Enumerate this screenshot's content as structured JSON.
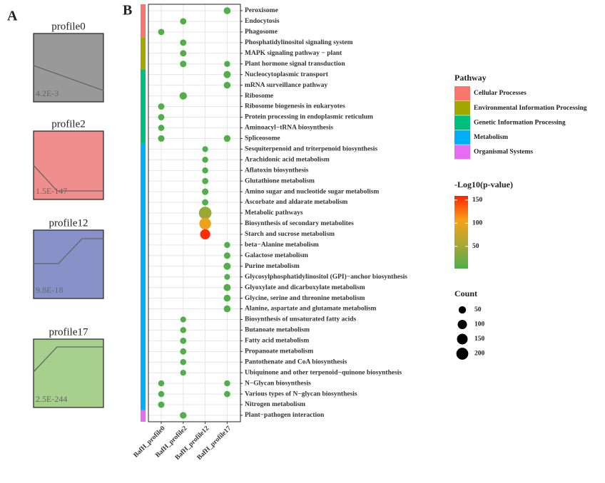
{
  "chart_data": {
    "type": "dotplot",
    "panels": [
      "A",
      "B"
    ],
    "profiles": [
      {
        "title": "profile0",
        "pvalue": "4.2E-3",
        "color": "#999999"
      },
      {
        "title": "profile2",
        "pvalue": "1.5E-147",
        "color": "#f08e8e"
      },
      {
        "title": "profile12",
        "pvalue": "9.8E-18",
        "color": "#8892c8"
      },
      {
        "title": "profile17",
        "pvalue": "2.5E-244",
        "color": "#a6d08c"
      }
    ],
    "columns": [
      "BafH_profile0",
      "BafH_profile2",
      "BafH_profile12",
      "BafH_profile17"
    ],
    "groups": [
      {
        "name": "Cellular Processes",
        "color": "#f8766d",
        "pathways": [
          {
            "name": "Peroxisome",
            "count": [
              null,
              null,
              null,
              40
            ],
            "logp": [
              null,
              null,
              null,
              5
            ]
          },
          {
            "name": "Endocytosis",
            "count": [
              null,
              30,
              null,
              null
            ],
            "logp": [
              null,
              4,
              null,
              null
            ]
          },
          {
            "name": "Phagosome",
            "count": [
              28,
              null,
              null,
              null
            ],
            "logp": [
              4,
              null,
              null,
              null
            ]
          }
        ]
      },
      {
        "name": "Environmental Information Processing",
        "color": "#a3a500",
        "pathways": [
          {
            "name": "Phosphatidylinositol signaling system",
            "count": [
              null,
              30,
              null,
              null
            ],
            "logp": [
              null,
              4,
              null,
              null
            ]
          },
          {
            "name": "MAPK signaling pathway − plant",
            "count": [
              null,
              30,
              null,
              null
            ],
            "logp": [
              null,
              4,
              null,
              null
            ]
          },
          {
            "name": "Plant hormone signal transduction",
            "count": [
              null,
              32,
              null,
              25
            ],
            "logp": [
              null,
              4,
              null,
              3
            ]
          }
        ]
      },
      {
        "name": "Genetic Information Processing",
        "color": "#00bf7d",
        "pathways": [
          {
            "name": "Nucleocytoplasmic transport",
            "count": [
              null,
              null,
              null,
              45
            ],
            "logp": [
              null,
              null,
              null,
              6
            ]
          },
          {
            "name": "mRNA surveillance pathway",
            "count": [
              null,
              null,
              null,
              38
            ],
            "logp": [
              null,
              null,
              null,
              5
            ]
          },
          {
            "name": "Ribosome",
            "count": [
              null,
              50,
              null,
              null
            ],
            "logp": [
              null,
              6,
              null,
              null
            ]
          },
          {
            "name": "Ribosome biogenesis in eukaryotes",
            "count": [
              30,
              null,
              null,
              null
            ],
            "logp": [
              4,
              null,
              null,
              null
            ]
          },
          {
            "name": "Protein processing in endoplasmic reticulum",
            "count": [
              30,
              null,
              null,
              null
            ],
            "logp": [
              4,
              null,
              null,
              null
            ]
          },
          {
            "name": "Aminoacyl−tRNA biosynthesis",
            "count": [
              28,
              null,
              null,
              null
            ],
            "logp": [
              4,
              null,
              null,
              null
            ]
          },
          {
            "name": "Spliceosome",
            "count": [
              32,
              null,
              null,
              38
            ],
            "logp": [
              4,
              null,
              null,
              5
            ]
          }
        ]
      },
      {
        "name": "Metabolism",
        "color": "#00b0f6",
        "pathways": [
          {
            "name": "Sesquiterpenoid and triterpenoid biosynthesis",
            "count": [
              null,
              null,
              22,
              null
            ],
            "logp": [
              null,
              null,
              3,
              null
            ]
          },
          {
            "name": "Arachidonic acid metabolism",
            "count": [
              null,
              null,
              25,
              null
            ],
            "logp": [
              null,
              null,
              4,
              null
            ]
          },
          {
            "name": "Aflatoxin biosynthesis",
            "count": [
              null,
              null,
              25,
              null
            ],
            "logp": [
              null,
              null,
              4,
              null
            ]
          },
          {
            "name": "Glutathione metabolism",
            "count": [
              null,
              null,
              28,
              null
            ],
            "logp": [
              null,
              null,
              5,
              null
            ]
          },
          {
            "name": "Amino sugar and nucleotide sugar metabolism",
            "count": [
              null,
              null,
              32,
              null
            ],
            "logp": [
              null,
              null,
              5,
              null
            ]
          },
          {
            "name": "Ascorbate and aldarate metabolism",
            "count": [
              null,
              null,
              30,
              null
            ],
            "logp": [
              null,
              null,
              5,
              null
            ]
          },
          {
            "name": "Metabolic pathways",
            "count": [
              null,
              null,
              230,
              null
            ],
            "logp": [
              null,
              null,
              45,
              null
            ]
          },
          {
            "name": "Biosynthesis of secondary metabolites",
            "count": [
              null,
              null,
              190,
              null
            ],
            "logp": [
              null,
              null,
              100,
              null
            ]
          },
          {
            "name": "Starch and sucrose metabolism",
            "count": [
              null,
              null,
              130,
              null
            ],
            "logp": [
              null,
              null,
              155,
              null
            ]
          },
          {
            "name": "beta−Alanine metabolism",
            "count": [
              null,
              null,
              null,
              25
            ],
            "logp": [
              null,
              null,
              null,
              4
            ]
          },
          {
            "name": "Galactose metabolism",
            "count": [
              null,
              null,
              null,
              32
            ],
            "logp": [
              null,
              null,
              null,
              5
            ]
          },
          {
            "name": "Purine metabolism",
            "count": [
              null,
              null,
              null,
              45
            ],
            "logp": [
              null,
              null,
              null,
              5
            ]
          },
          {
            "name": "Glycosylphosphatidylinositol (GPI)−anchor biosynthesis",
            "count": [
              null,
              null,
              null,
              22
            ],
            "logp": [
              null,
              null,
              null,
              4
            ]
          },
          {
            "name": "Glyoxylate and dicarboxylate metabolism",
            "count": [
              null,
              null,
              null,
              45
            ],
            "logp": [
              null,
              null,
              null,
              6
            ]
          },
          {
            "name": "Glycine, serine and threonine metabolism",
            "count": [
              null,
              null,
              null,
              40
            ],
            "logp": [
              null,
              null,
              null,
              5
            ]
          },
          {
            "name": "Alanine, aspartate and glutamate metabolism",
            "count": [
              null,
              null,
              null,
              40
            ],
            "logp": [
              null,
              null,
              null,
              5
            ]
          },
          {
            "name": "Biosynthesis of unsaturated fatty acids",
            "count": [
              null,
              22,
              null,
              null
            ],
            "logp": [
              null,
              3,
              null,
              null
            ]
          },
          {
            "name": "Butanoate metabolism",
            "count": [
              null,
              25,
              null,
              null
            ],
            "logp": [
              null,
              4,
              null,
              null
            ]
          },
          {
            "name": "Fatty acid metabolism",
            "count": [
              null,
              28,
              null,
              null
            ],
            "logp": [
              null,
              4,
              null,
              null
            ]
          },
          {
            "name": "Propanoate metabolism",
            "count": [
              null,
              28,
              null,
              null
            ],
            "logp": [
              null,
              4,
              null,
              null
            ]
          },
          {
            "name": "Pantothenate and CoA biosynthesis",
            "count": [
              null,
              25,
              null,
              null
            ],
            "logp": [
              null,
              4,
              null,
              null
            ]
          },
          {
            "name": "Ubiquinone and other terpenoid−quinone biosynthesis",
            "count": [
              null,
              22,
              null,
              null
            ],
            "logp": [
              null,
              3,
              null,
              null
            ]
          },
          {
            "name": "N−Glycan biosynthesis",
            "count": [
              25,
              null,
              null,
              25
            ],
            "logp": [
              4,
              null,
              null,
              4
            ]
          },
          {
            "name": "Various types of N−glycan biosynthesis",
            "count": [
              25,
              null,
              null,
              28
            ],
            "logp": [
              4,
              null,
              null,
              4
            ]
          },
          {
            "name": "Nitrogen metabolism",
            "count": [
              30,
              null,
              null,
              null
            ],
            "logp": [
              4,
              null,
              null,
              null
            ]
          }
        ]
      },
      {
        "name": "Organismal Systems",
        "color": "#e76bf3",
        "pathways": [
          {
            "name": "Plant−pathogen interaction",
            "count": [
              null,
              35,
              null,
              null
            ],
            "logp": [
              null,
              5,
              null,
              null
            ]
          }
        ]
      }
    ],
    "legend_title": "Pathway",
    "color_title": "-Log10(p-value)",
    "colorlim": [
      2,
      159
    ],
    "colorticks": [
      50,
      100,
      150
    ],
    "colors": [
      "#4daf4a",
      "#a8a832",
      "#f5a21b",
      "#ff2200"
    ],
    "size_title": "Count",
    "sizeticks": [
      50,
      100,
      150,
      200
    ]
  }
}
